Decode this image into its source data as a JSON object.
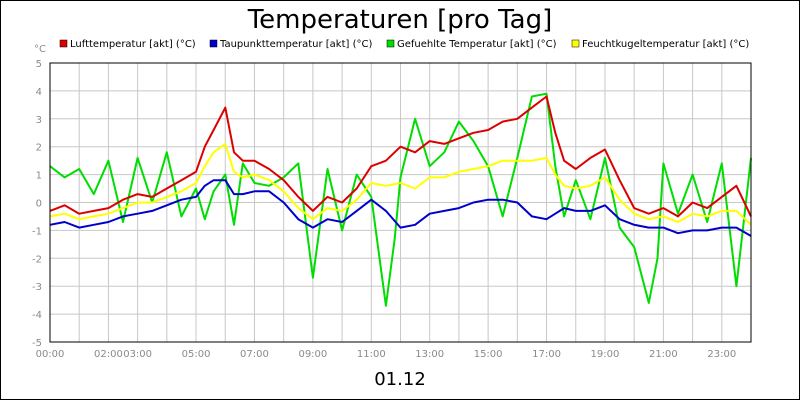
{
  "chart_data": {
    "type": "line",
    "title": "Temperaturen [pro Tag]",
    "y_unit": "°C",
    "date_label": "01.12",
    "ylim": [
      -5,
      5
    ],
    "y_ticks": [
      "5",
      "4",
      "3",
      "2",
      "1",
      "0",
      "-1",
      "-2",
      "-3",
      "-4",
      "-5"
    ],
    "x_range_hours": [
      0,
      24
    ],
    "x_tick_labels": [
      {
        "h": 0,
        "label": "00:00"
      },
      {
        "h": 2,
        "label": "02:00"
      },
      {
        "h": 3,
        "label": "03:00"
      },
      {
        "h": 5,
        "label": "05:00"
      },
      {
        "h": 7,
        "label": "07:00"
      },
      {
        "h": 9,
        "label": "09:00"
      },
      {
        "h": 11,
        "label": "11:00"
      },
      {
        "h": 13,
        "label": "13:00"
      },
      {
        "h": 15,
        "label": "15:00"
      },
      {
        "h": 17,
        "label": "17:00"
      },
      {
        "h": 19,
        "label": "19:00"
      },
      {
        "h": 21,
        "label": "21:00"
      },
      {
        "h": 23,
        "label": "23:00"
      }
    ],
    "grid": true,
    "legend_position": "top",
    "series": [
      {
        "name": "Lufttemperatur [akt] (°C)",
        "color": "#dd0000",
        "x": [
          0,
          0.5,
          1,
          1.5,
          2,
          2.5,
          3,
          3.5,
          4,
          4.5,
          5,
          5.3,
          5.6,
          6,
          6.3,
          6.6,
          7,
          7.5,
          8,
          8.5,
          9,
          9.5,
          10,
          10.5,
          11,
          11.5,
          12,
          12.5,
          13,
          13.5,
          14,
          14.5,
          15,
          15.5,
          16,
          16.5,
          17,
          17.3,
          17.6,
          18,
          18.5,
          19,
          19.5,
          20,
          20.5,
          21,
          21.5,
          22,
          22.5,
          23,
          23.5,
          24
        ],
        "values": [
          -0.3,
          -0.1,
          -0.4,
          -0.3,
          -0.2,
          0.1,
          0.3,
          0.2,
          0.5,
          0.8,
          1.1,
          2.0,
          2.6,
          3.4,
          1.8,
          1.5,
          1.5,
          1.2,
          0.8,
          0.2,
          -0.3,
          0.2,
          0.0,
          0.5,
          1.3,
          1.5,
          2.0,
          1.8,
          2.2,
          2.1,
          2.3,
          2.5,
          2.6,
          2.9,
          3.0,
          3.4,
          3.8,
          2.5,
          1.5,
          1.2,
          1.6,
          1.9,
          0.8,
          -0.2,
          -0.4,
          -0.2,
          -0.5,
          0.0,
          -0.2,
          0.2,
          0.6,
          -0.5
        ]
      },
      {
        "name": "Taupunkttemperatur [akt] (°C)",
        "color": "#0000cc",
        "x": [
          0,
          0.5,
          1,
          1.5,
          2,
          2.5,
          3,
          3.5,
          4,
          4.5,
          5,
          5.3,
          5.6,
          6,
          6.3,
          6.6,
          7,
          7.5,
          8,
          8.5,
          9,
          9.5,
          10,
          10.5,
          11,
          11.5,
          12,
          12.5,
          13,
          13.5,
          14,
          14.5,
          15,
          15.5,
          16,
          16.5,
          17,
          17.3,
          17.6,
          18,
          18.5,
          19,
          19.5,
          20,
          20.5,
          21,
          21.5,
          22,
          22.5,
          23,
          23.5,
          24
        ],
        "values": [
          -0.8,
          -0.7,
          -0.9,
          -0.8,
          -0.7,
          -0.5,
          -0.4,
          -0.3,
          -0.1,
          0.1,
          0.2,
          0.6,
          0.8,
          0.8,
          0.3,
          0.3,
          0.4,
          0.4,
          0.0,
          -0.6,
          -0.9,
          -0.6,
          -0.7,
          -0.3,
          0.1,
          -0.3,
          -0.9,
          -0.8,
          -0.4,
          -0.3,
          -0.2,
          0.0,
          0.1,
          0.1,
          0.0,
          -0.5,
          -0.6,
          -0.4,
          -0.2,
          -0.3,
          -0.3,
          -0.1,
          -0.6,
          -0.8,
          -0.9,
          -0.9,
          -1.1,
          -1.0,
          -1.0,
          -0.9,
          -0.9,
          -1.2
        ]
      },
      {
        "name": "Gefuehlte Temperatur [akt] (°C)",
        "color": "#00dd00",
        "x": [
          0,
          0.5,
          1,
          1.5,
          2,
          2.5,
          3,
          3.5,
          4,
          4.5,
          5,
          5.3,
          5.6,
          6,
          6.3,
          6.6,
          7,
          7.5,
          8,
          8.5,
          9,
          9.5,
          10,
          10.5,
          11,
          11.5,
          11.8,
          12,
          12.5,
          13,
          13.5,
          14,
          14.5,
          15,
          15.5,
          16,
          16.5,
          17,
          17.3,
          17.6,
          18,
          18.5,
          19,
          19.5,
          20,
          20.5,
          20.8,
          21,
          21.5,
          22,
          22.5,
          23,
          23.5,
          24
        ],
        "values": [
          1.3,
          0.9,
          1.2,
          0.3,
          1.5,
          -0.7,
          1.6,
          0.0,
          1.8,
          -0.5,
          0.5,
          -0.6,
          0.4,
          1.0,
          -0.8,
          1.4,
          0.7,
          0.6,
          0.9,
          1.4,
          -2.7,
          1.2,
          -1.0,
          1.0,
          0.2,
          -3.7,
          -1.3,
          0.9,
          3.0,
          1.3,
          1.8,
          2.9,
          2.2,
          1.3,
          -0.5,
          1.6,
          3.8,
          3.9,
          1.3,
          -0.5,
          0.8,
          -0.6,
          1.6,
          -0.9,
          -1.6,
          -3.6,
          -2.0,
          1.4,
          -0.4,
          1.0,
          -0.7,
          1.4,
          -3.0,
          1.6
        ]
      },
      {
        "name": "Feuchtkugeltemperatur [akt] (°C)",
        "color": "#ffff00",
        "x": [
          0,
          0.5,
          1,
          1.5,
          2,
          2.5,
          3,
          3.5,
          4,
          4.5,
          5,
          5.3,
          5.6,
          6,
          6.3,
          6.6,
          7,
          7.5,
          8,
          8.5,
          9,
          9.5,
          10,
          10.5,
          11,
          11.5,
          12,
          12.5,
          13,
          13.5,
          14,
          14.5,
          15,
          15.5,
          16,
          16.5,
          17,
          17.3,
          17.6,
          18,
          18.5,
          19,
          19.5,
          20,
          20.5,
          21,
          21.5,
          22,
          22.5,
          23,
          23.5,
          24
        ],
        "values": [
          -0.5,
          -0.4,
          -0.6,
          -0.5,
          -0.4,
          -0.2,
          0.0,
          0.0,
          0.2,
          0.4,
          0.7,
          1.3,
          1.8,
          2.1,
          1.1,
          0.9,
          1.0,
          0.8,
          0.4,
          -0.2,
          -0.6,
          -0.2,
          -0.3,
          0.1,
          0.7,
          0.6,
          0.7,
          0.5,
          0.9,
          0.9,
          1.1,
          1.2,
          1.3,
          1.5,
          1.5,
          1.5,
          1.6,
          1.0,
          0.6,
          0.5,
          0.6,
          0.9,
          0.1,
          -0.4,
          -0.6,
          -0.5,
          -0.7,
          -0.4,
          -0.5,
          -0.3,
          -0.3,
          -0.8
        ]
      }
    ]
  }
}
